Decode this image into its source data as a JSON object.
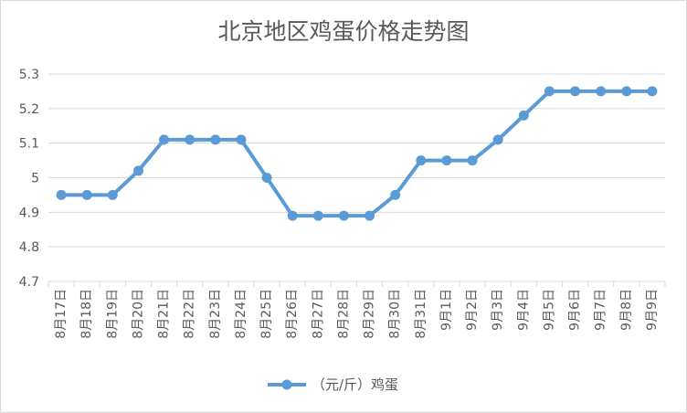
{
  "chart_data": {
    "type": "line",
    "title": "北京地区鸡蛋价格走势图",
    "xlabel": "",
    "ylabel": "",
    "categories": [
      "8月17日",
      "8月18日",
      "8月19日",
      "8月20日",
      "8月21日",
      "8月22日",
      "8月23日",
      "8月24日",
      "8月25日",
      "8月26日",
      "8月27日",
      "8月28日",
      "8月29日",
      "8月30日",
      "8月31日",
      "9月1日",
      "9月2日",
      "9月3日",
      "9月4日",
      "9月5日",
      "9月6日",
      "9月7日",
      "9月8日",
      "9月9日"
    ],
    "series": [
      {
        "name": "（元/斤）鸡蛋",
        "values": [
          4.95,
          4.95,
          4.95,
          5.02,
          5.11,
          5.11,
          5.11,
          5.11,
          5.0,
          4.89,
          4.89,
          4.89,
          4.89,
          4.95,
          5.05,
          5.05,
          5.05,
          5.11,
          5.18,
          5.25,
          5.25,
          5.25,
          5.25,
          5.25
        ],
        "color": "#5b9bd5"
      }
    ],
    "ylim": [
      4.7,
      5.3
    ],
    "yticks": [
      "4.7",
      "4.8",
      "4.9",
      "5",
      "5.1",
      "5.2",
      "5.3"
    ],
    "grid": true,
    "legend": "bottom"
  }
}
